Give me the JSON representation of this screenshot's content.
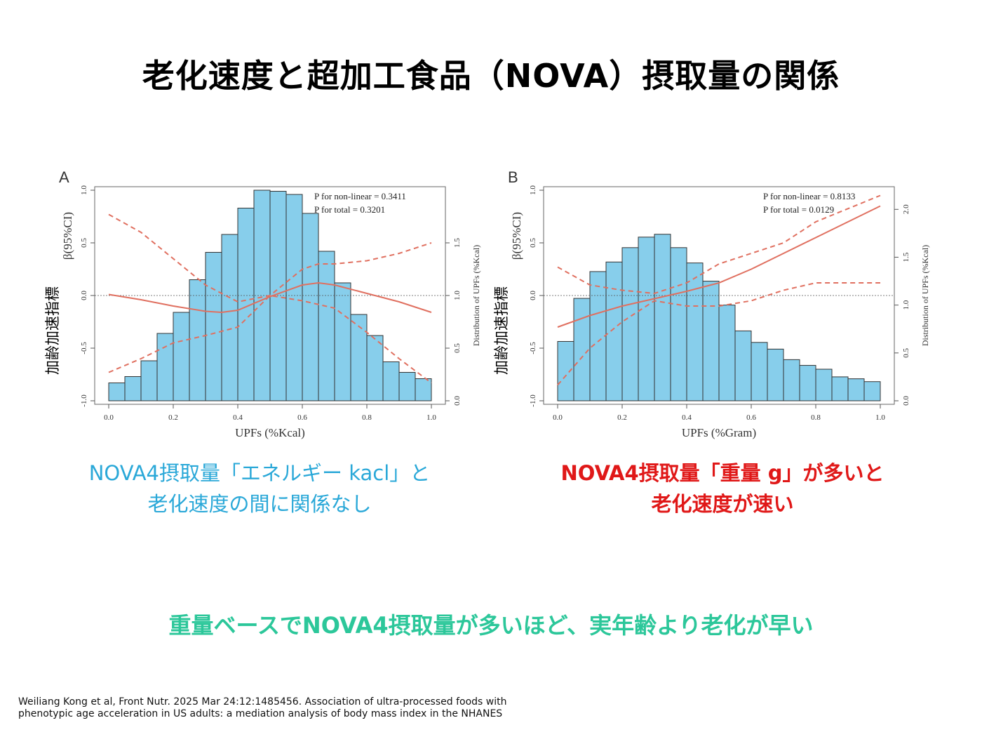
{
  "slide": {
    "title": "老化速度と超加工食品（NOVA）摂取量の関係",
    "caption_a": [
      "NOVA4摂取量「エネルギー kacl」と",
      "老化速度の間に関係なし"
    ],
    "caption_b": [
      "NOVA4摂取量「重量 g」が多いと",
      "老化速度が速い"
    ],
    "conclusion": "重量ベースでNOVA4摂取量が多いほど、実年齢より老化が早い",
    "citation": [
      "Weiliang Kong et al, Front Nutr. 2025 Mar 24:12:1485456. Association of ultra-processed foods with",
      "phenotypic age acceleration in US adults: a mediation analysis of body mass index in the NHANES"
    ],
    "colors": {
      "caption_a": "#2aa8d8",
      "caption_b": "#e01818",
      "conclusion": "#2cc79a",
      "histogram_bar": "#87ceeb",
      "curve": "#e07060"
    }
  },
  "chart_data": [
    {
      "type": "histogram",
      "panel_label": "A",
      "xlabel": "UPFs (%Kcal)",
      "ylabel_overlay": "加齢加速指標",
      "ylabel": "β(95%CI)",
      "ylabel_right": "Distribution of  UPFs (%Kcal)",
      "annotations": [
        "P for non-linear = 0.3411",
        "P for total = 0.3201"
      ],
      "xlim": [
        0,
        1
      ],
      "ylim": [
        -1,
        1
      ],
      "y2lim": [
        0,
        2
      ],
      "x_ticks": [
        "0.0",
        "0.2",
        "0.4",
        "0.6",
        "0.8",
        "1.0"
      ],
      "y_ticks": [
        "-1.0",
        "-0.5",
        "0.0",
        "0.5",
        "1.0"
      ],
      "y2_ticks": [
        "0.0",
        "0.5",
        "1.0",
        "1.5"
      ],
      "y2_tick_values": [
        0,
        0.5,
        1,
        1.5
      ],
      "histogram_bins": [
        0,
        0.05,
        0.1,
        0.15,
        0.2,
        0.25,
        0.3,
        0.35,
        0.4,
        0.45,
        0.5,
        0.55,
        0.6,
        0.65,
        0.7,
        0.75,
        0.8,
        0.85,
        0.9,
        0.95,
        1.0
      ],
      "histogram_values": [
        0.17,
        0.23,
        0.38,
        0.64,
        0.84,
        1.15,
        1.41,
        1.58,
        1.83,
        2.0,
        1.99,
        1.96,
        1.78,
        1.42,
        1.12,
        0.82,
        0.62,
        0.37,
        0.27,
        0.21
      ],
      "series": [
        {
          "x": [
            0,
            0.1,
            0.2,
            0.3,
            0.35,
            0.4,
            0.5,
            0.6,
            0.65,
            0.7,
            0.8,
            0.9,
            1.0
          ],
          "y": [
            0.01,
            -0.04,
            -0.1,
            -0.15,
            -0.16,
            -0.14,
            -0.01,
            0.1,
            0.12,
            0.1,
            0.02,
            -0.06,
            -0.16
          ]
        },
        {
          "x": [
            0,
            0.1,
            0.2,
            0.3,
            0.4,
            0.5,
            0.6,
            0.65,
            0.7,
            0.8,
            0.9,
            1.0
          ],
          "y": [
            0.77,
            0.6,
            0.35,
            0.1,
            -0.06,
            0.0,
            0.25,
            0.3,
            0.3,
            0.33,
            0.4,
            0.5
          ]
        },
        {
          "x": [
            0,
            0.1,
            0.2,
            0.3,
            0.4,
            0.5,
            0.6,
            0.7,
            0.8,
            0.9,
            1.0
          ],
          "y": [
            -0.73,
            -0.6,
            -0.45,
            -0.38,
            -0.3,
            0.0,
            -0.05,
            -0.12,
            -0.35,
            -0.6,
            -0.83
          ]
        }
      ]
    },
    {
      "type": "histogram",
      "panel_label": "B",
      "xlabel": "UPFs (%Gram)",
      "ylabel_overlay": "加齢加速指標",
      "ylabel": "β(95%CI)",
      "ylabel_right": "Distribution of  UPFs (%Kcal)",
      "annotations": [
        "P for non-linear = 0.8133",
        "P for total = 0.0129"
      ],
      "xlim": [
        0,
        1
      ],
      "ylim": [
        -1,
        1
      ],
      "y2lim": [
        0,
        2.2
      ],
      "x_ticks": [
        "0.0",
        "0.2",
        "0.4",
        "0.6",
        "0.8",
        "1.0"
      ],
      "y_ticks": [
        "-1.0",
        "-0.5",
        "0.0",
        "0.5",
        "1.0"
      ],
      "y2_ticks": [
        "0.0",
        "0.5",
        "1.0",
        "1.5",
        "2.0"
      ],
      "y2_tick_values": [
        0,
        0.5,
        1,
        1.5,
        2
      ],
      "histogram_bins": [
        0,
        0.05,
        0.1,
        0.15,
        0.2,
        0.25,
        0.3,
        0.35,
        0.4,
        0.45,
        0.5,
        0.55,
        0.6,
        0.65,
        0.7,
        0.75,
        0.8,
        0.85,
        0.9,
        0.95,
        1.0
      ],
      "histogram_values": [
        0.62,
        1.07,
        1.35,
        1.45,
        1.6,
        1.71,
        1.74,
        1.6,
        1.44,
        1.25,
        1.0,
        0.73,
        0.61,
        0.54,
        0.43,
        0.37,
        0.33,
        0.25,
        0.23,
        0.2
      ],
      "series": [
        {
          "x": [
            0,
            0.1,
            0.2,
            0.3,
            0.4,
            0.5,
            0.6,
            0.7,
            0.8,
            0.9,
            1.0
          ],
          "y": [
            -0.3,
            -0.19,
            -0.1,
            -0.03,
            0.04,
            0.12,
            0.25,
            0.4,
            0.55,
            0.7,
            0.85
          ]
        },
        {
          "x": [
            0,
            0.1,
            0.2,
            0.3,
            0.4,
            0.5,
            0.6,
            0.7,
            0.8,
            1.0
          ],
          "y": [
            0.27,
            0.1,
            0.05,
            0.02,
            0.12,
            0.3,
            0.4,
            0.5,
            0.7,
            0.95
          ]
        },
        {
          "x": [
            0,
            0.1,
            0.2,
            0.3,
            0.4,
            0.5,
            0.6,
            0.7,
            0.8,
            0.9,
            1.0
          ],
          "y": [
            -0.85,
            -0.5,
            -0.25,
            -0.05,
            -0.1,
            -0.1,
            -0.05,
            0.05,
            0.12,
            0.12,
            0.12
          ]
        }
      ]
    }
  ]
}
